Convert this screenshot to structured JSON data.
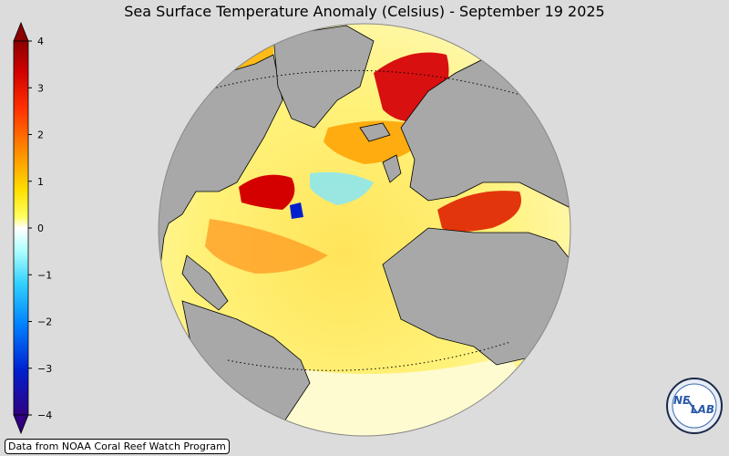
{
  "title": "Sea Surface Temperature Anomaly (Celsius) - September 19 2025",
  "colorbar": {
    "ticks": [
      "4",
      "3",
      "2",
      "1",
      "0",
      "−1",
      "−2",
      "−3",
      "−4"
    ],
    "colors": [
      "#200070",
      "#0a20c8",
      "#0070ff",
      "#00c8ff",
      "#ffffff",
      "#ffff00",
      "#ffb000",
      "#ff5000",
      "#c00000",
      "#800000"
    ]
  },
  "credit": "Data from NOAA Coral Reef Watch Program",
  "logo": {
    "text_a": "NE",
    "text_b": "LAB",
    "icon": "nexlab-logo"
  },
  "map_colors": {
    "land": "#a8a8a8",
    "border": "#000000"
  }
}
